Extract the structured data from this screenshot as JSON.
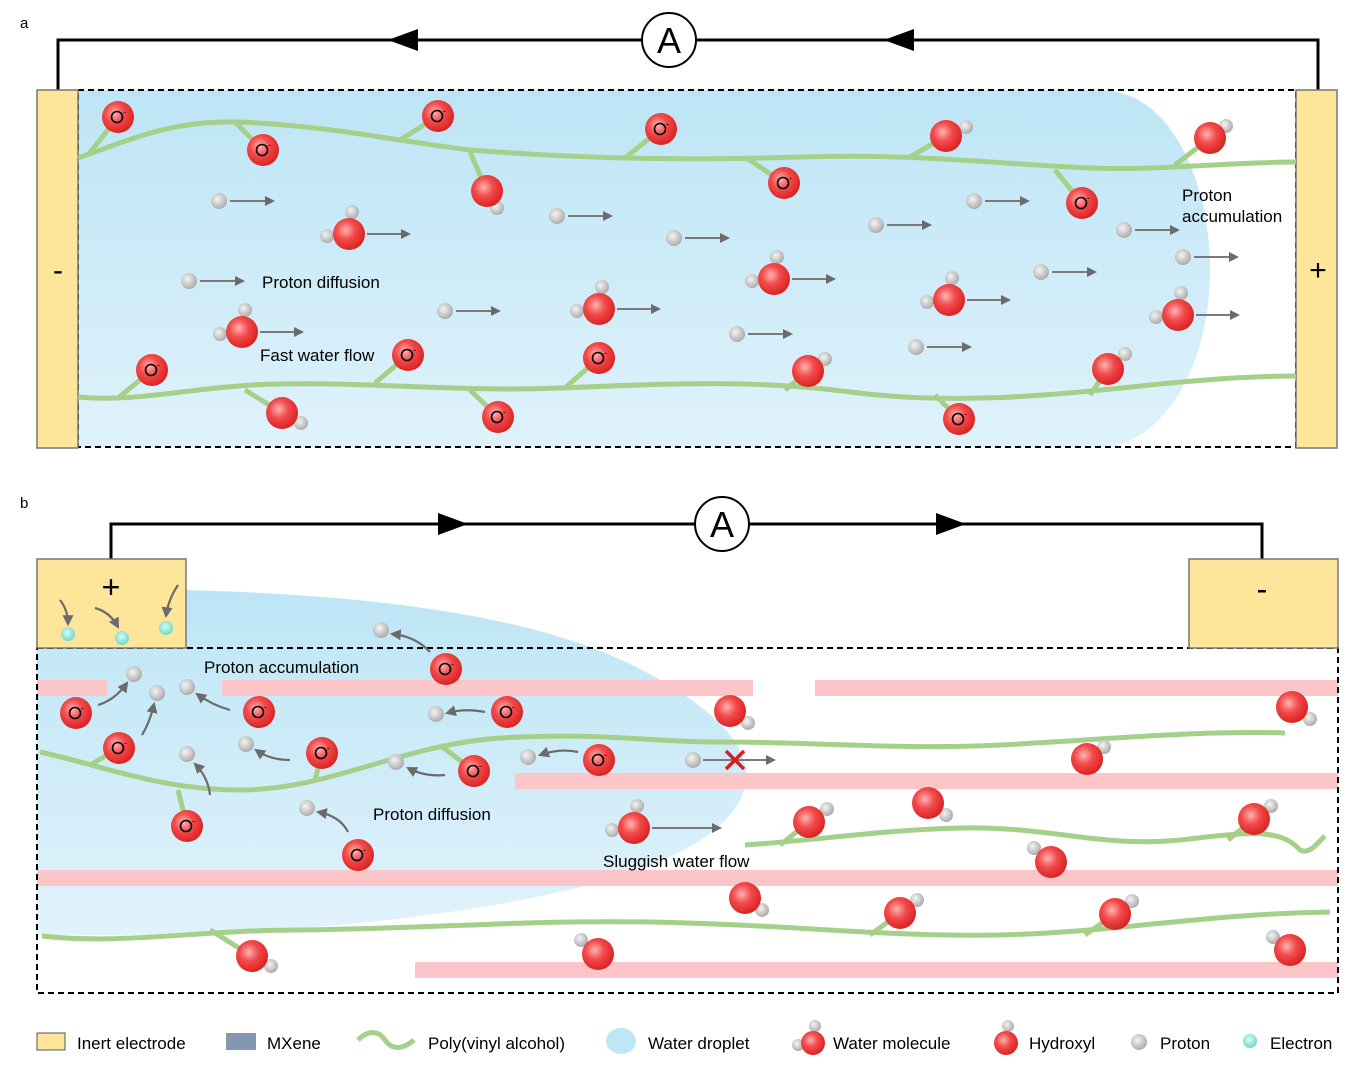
{
  "panel_a": {
    "label": "a",
    "ammeter": "A",
    "left_electrode_sign": "-",
    "right_electrode_sign": "+",
    "hydroxyl_text": "O-",
    "labels": {
      "proton_diffusion": "Proton diffusion",
      "fast_water_flow": "Fast water flow",
      "proton_accumulation_line1": "Proton",
      "proton_accumulation_line2": "accumulation"
    }
  },
  "panel_b": {
    "label": "b",
    "ammeter": "A",
    "left_electrode_sign": "+",
    "right_electrode_sign": "-",
    "labels": {
      "proton_accumulation": "Proton accumulation",
      "proton_diffusion": "Proton diffusion",
      "sluggish_water_flow": "Sluggish water flow"
    }
  },
  "legend": [
    {
      "label": "Inert electrode",
      "icon": "inert-electrode-swatch"
    },
    {
      "label": "MXene",
      "icon": "mxene-swatch"
    },
    {
      "label": "Poly(vinyl alcohol)",
      "icon": "pva-wave"
    },
    {
      "label": "Water droplet",
      "icon": "water-droplet"
    },
    {
      "label": "Water molecule",
      "icon": "water-molecule"
    },
    {
      "label": "Hydroxyl",
      "icon": "hydroxyl"
    },
    {
      "label": "Proton",
      "icon": "proton"
    },
    {
      "label": "Electron",
      "icon": "electron"
    }
  ],
  "colors": {
    "electrode": "#fde599",
    "mxene_legend": "#8497b0",
    "mxene_bars": "#fcc5c7",
    "pva": "#a5d08a",
    "water": "#bfe6f7",
    "hydroxyl": "#ec3b3b",
    "proton": "#c8c8c8",
    "electron": "#7fe0d0"
  }
}
